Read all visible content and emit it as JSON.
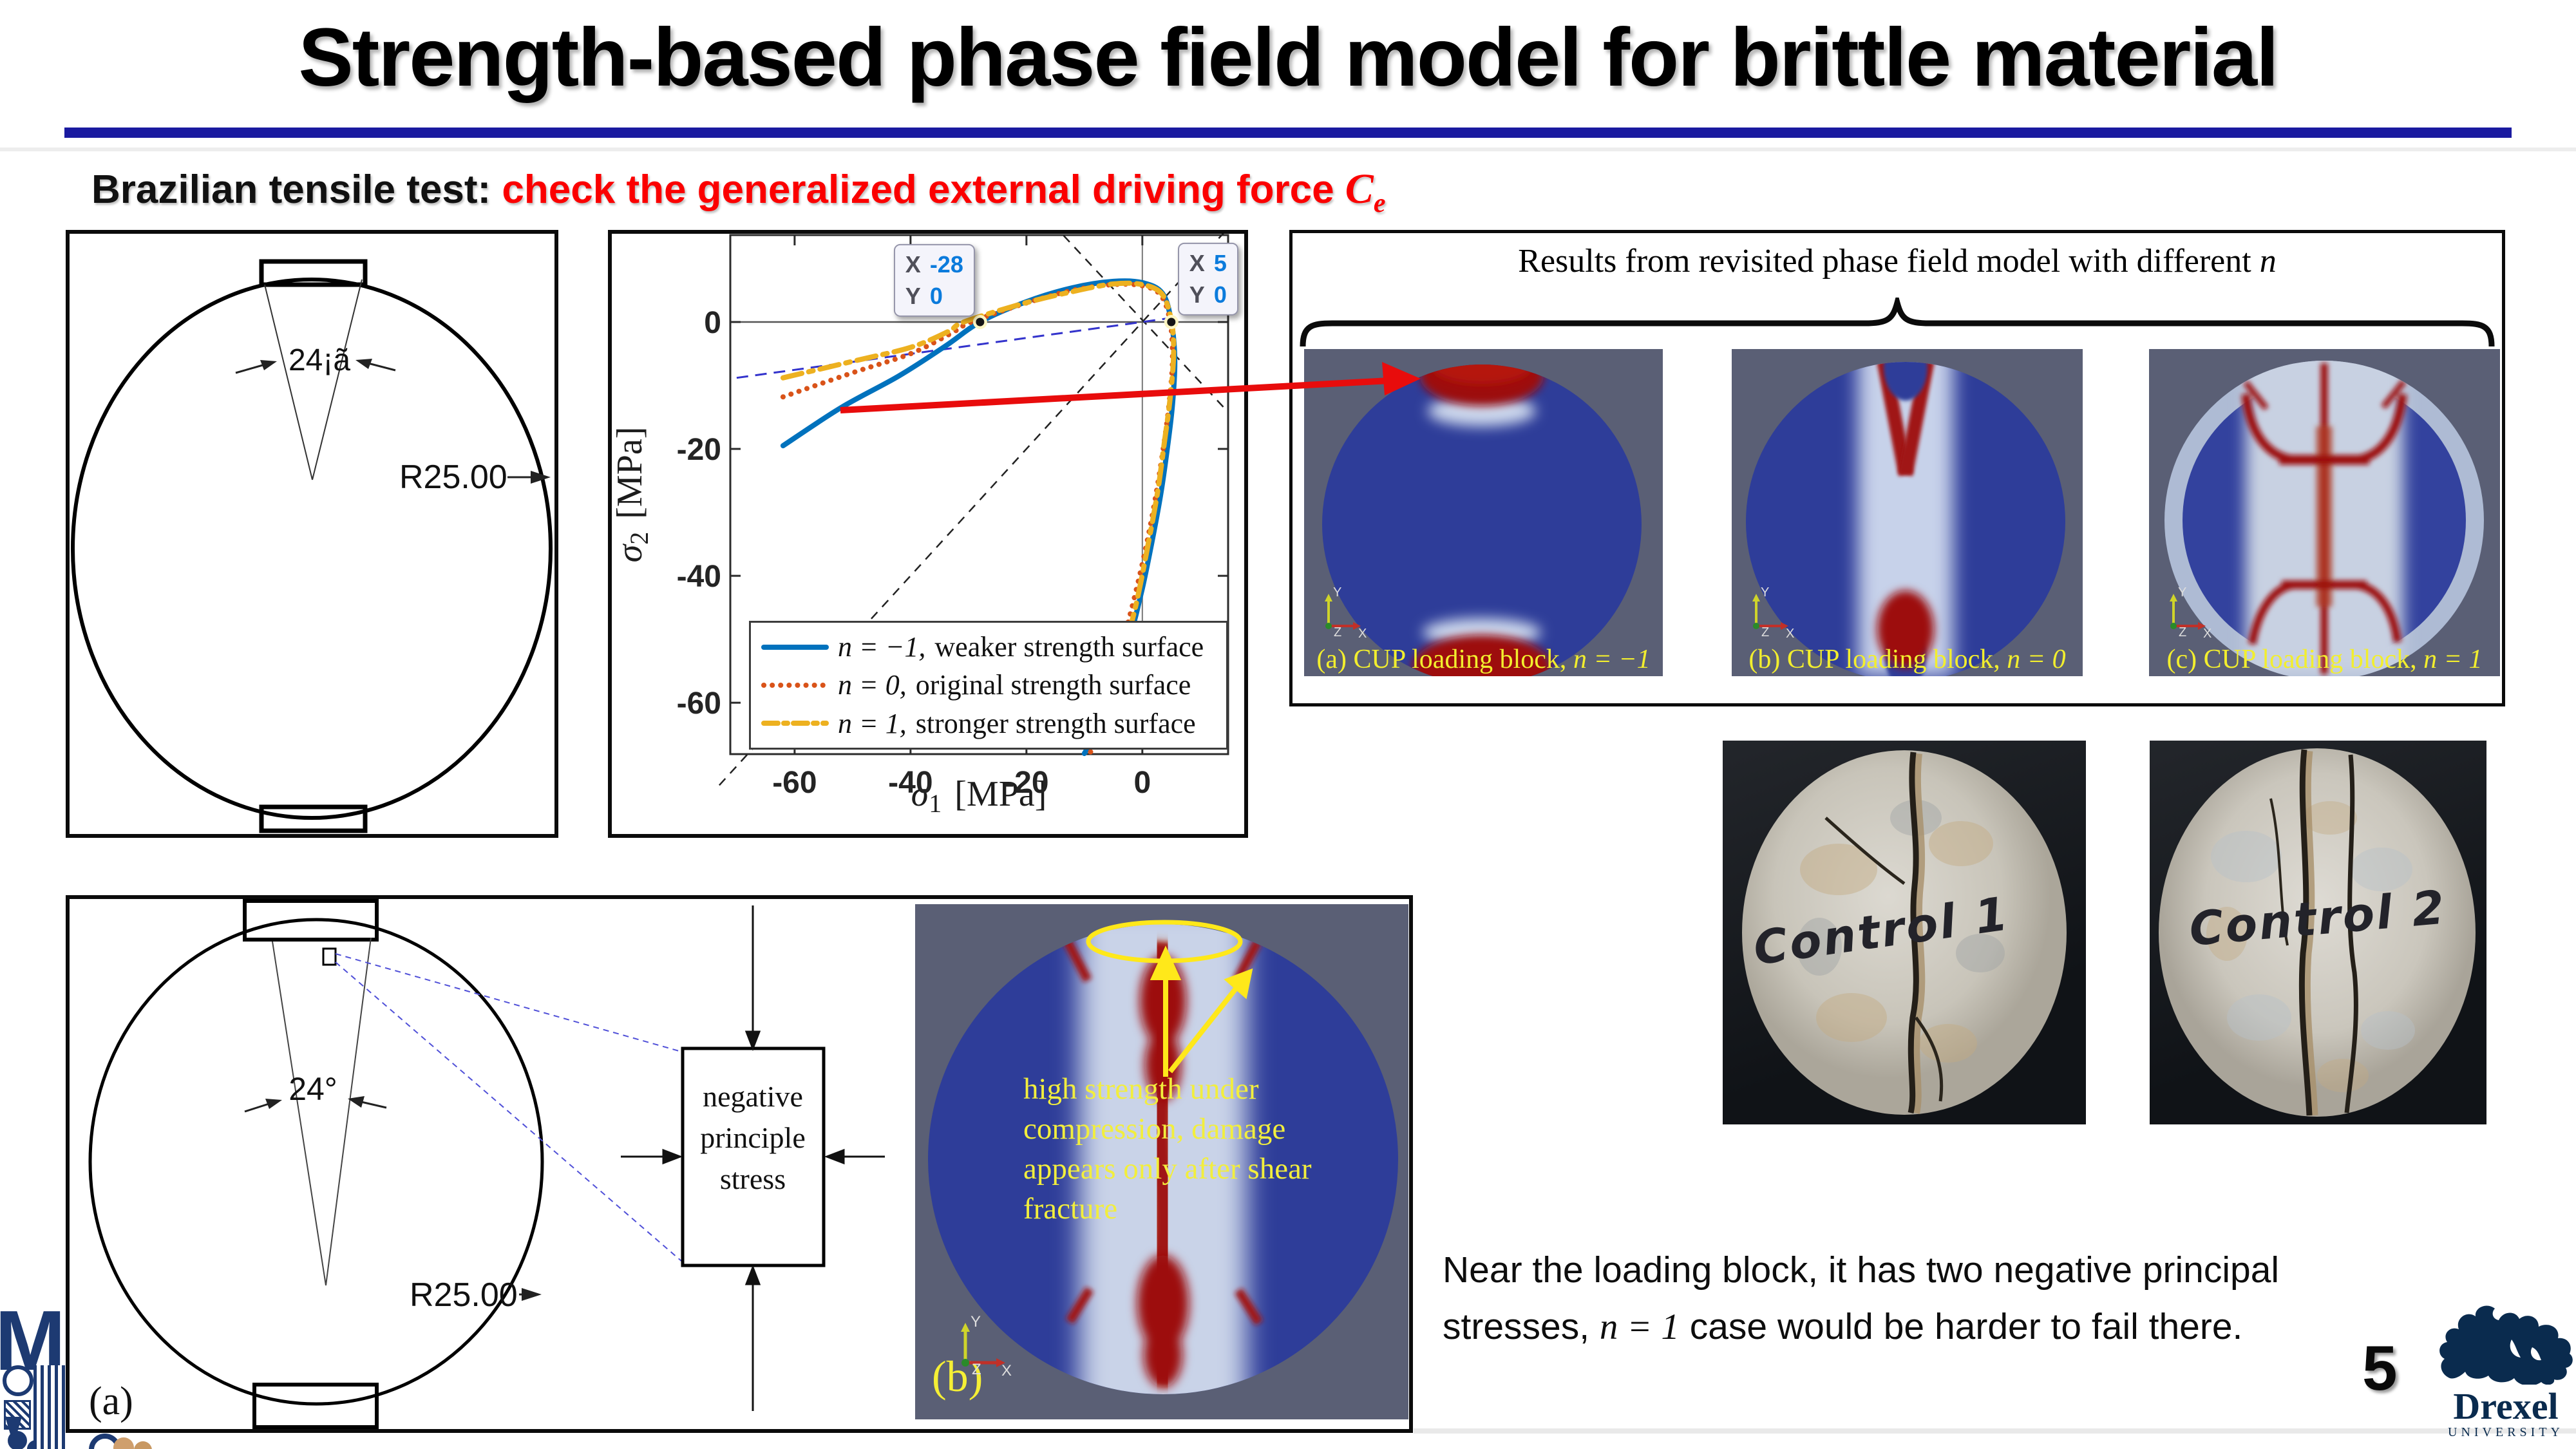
{
  "slide": {
    "title": "Strength-based phase field model for brittle material",
    "subtitle": {
      "black": "Brazilian tensile test: ",
      "red": "check the generalized external driving force ",
      "symbol_main": "C",
      "symbol_sub": "e"
    },
    "page_number": "5"
  },
  "top_left_diagram": {
    "angle_label": "24¡ã",
    "radius_label": "R25.00"
  },
  "plot": {
    "ylabel": {
      "sigma": "σ",
      "sub": "2",
      "unit": " [MPa]"
    },
    "xlabel": {
      "sigma": "σ",
      "sub": "1",
      "unit": " [MPa]"
    },
    "legend": [
      {
        "math": "n = −1,",
        "text": " weaker strength surface",
        "style": "solid",
        "color": "#0072BD"
      },
      {
        "math": "n = 0,",
        "text": " original strength surface",
        "style": "dotted",
        "color": "#D95319"
      },
      {
        "math": "n = 1,",
        "text": " stronger strength surface",
        "style": "dashdot",
        "color": "#EDB120"
      }
    ]
  },
  "chart_data": {
    "type": "line",
    "title": "",
    "xlabel": "σ1 [MPa]",
    "ylabel": "σ2 [MPa]",
    "xlim": [
      -71.1,
      14.8
    ],
    "ylim": [
      -68.1,
      13.7
    ],
    "xticks": [
      -60,
      -40,
      -20,
      0
    ],
    "yticks": [
      0,
      -20,
      -40,
      -60
    ],
    "grid": false,
    "legend_position": "lower-left-inside",
    "series": [
      {
        "name": "n = −1, weaker strength surface",
        "style": "solid",
        "color": "#0072BD",
        "points": [
          [
            -62,
            -19.5
          ],
          [
            -52,
            -13.5
          ],
          [
            -42,
            -8.5
          ],
          [
            -34,
            -3.8
          ],
          [
            -28,
            0
          ],
          [
            -20,
            3.2
          ],
          [
            -12,
            5.4
          ],
          [
            -5,
            6.4
          ],
          [
            0,
            6.2
          ],
          [
            3.5,
            4.5
          ],
          [
            5,
            0
          ],
          [
            5.6,
            -6
          ],
          [
            5.2,
            -13
          ],
          [
            4.3,
            -20
          ],
          [
            3.2,
            -27
          ],
          [
            1.8,
            -34
          ],
          [
            0,
            -42
          ],
          [
            -2.2,
            -50
          ],
          [
            -4.8,
            -58
          ],
          [
            -7.5,
            -64
          ],
          [
            -10,
            -68
          ]
        ]
      },
      {
        "name": "n = 0, original strength surface",
        "style": "dotted",
        "color": "#D95319",
        "points": [
          [
            -62,
            -11.8
          ],
          [
            -50,
            -8
          ],
          [
            -40,
            -5
          ],
          [
            -33,
            -1.8
          ],
          [
            -29.5,
            0
          ],
          [
            -20,
            3
          ],
          [
            -12,
            5
          ],
          [
            -5,
            5.9
          ],
          [
            0,
            5.7
          ],
          [
            3.2,
            4.2
          ],
          [
            4.8,
            0
          ],
          [
            5.2,
            -6
          ],
          [
            4.6,
            -13
          ],
          [
            3.6,
            -20
          ],
          [
            2.2,
            -28
          ],
          [
            0.5,
            -36
          ],
          [
            -1.8,
            -45
          ],
          [
            -4.5,
            -54
          ],
          [
            -7.3,
            -62
          ],
          [
            -9,
            -68
          ]
        ]
      },
      {
        "name": "n = 1, stronger strength surface",
        "style": "dashdot",
        "color": "#EDB120",
        "points": [
          [
            -62,
            -8.8
          ],
          [
            -50,
            -6.2
          ],
          [
            -40,
            -4
          ],
          [
            -33.5,
            -1.5
          ],
          [
            -30.8,
            0
          ],
          [
            -21,
            2.8
          ],
          [
            -12,
            4.8
          ],
          [
            -5,
            6
          ],
          [
            0,
            5.9
          ],
          [
            3.4,
            4.4
          ],
          [
            5,
            0.2
          ],
          [
            5.4,
            -5
          ],
          [
            4.8,
            -12
          ],
          [
            3.8,
            -19
          ],
          [
            2.6,
            -27
          ],
          [
            0.8,
            -36
          ],
          [
            -1.2,
            -45
          ],
          [
            -3.8,
            -54
          ],
          [
            -6,
            -62
          ],
          [
            -7.5,
            -67
          ]
        ]
      }
    ],
    "reference_lines": [
      {
        "name": "sigma2 = sigma1",
        "from": [
          -73,
          -73
        ],
        "to": [
          15.5,
          15.5
        ],
        "color": "#222222",
        "dash": "14 11",
        "width": 2.5
      },
      {
        "name": "sigma2 = -sigma1",
        "from": [
          -15.5,
          15.5
        ],
        "to": [
          14.7,
          -14.1
        ],
        "color": "#222222",
        "dash": "14 11",
        "width": 2.5
      },
      {
        "name": "biaxial tangent",
        "from": [
          -70,
          -8.8
        ],
        "to": [
          6.3,
          0.8
        ],
        "color": "#3333cc",
        "dash": "18 11",
        "width": 3
      }
    ],
    "annotations": [
      {
        "x": -28,
        "y": 0,
        "side": "left",
        "tip": {
          "x_label": "X",
          "x_value": "-28",
          "y_label": "Y",
          "y_value": "0"
        }
      },
      {
        "x": 5,
        "y": 0,
        "side": "right",
        "tip": {
          "x_label": "X",
          "x_value": "5",
          "y_label": "Y",
          "y_value": "0"
        }
      }
    ]
  },
  "right_panel": {
    "title": {
      "main": "Results from revisited phase field model with different ",
      "math": "n"
    },
    "sims": [
      {
        "caption_prefix": "(a) CUP loading block, ",
        "caption_math": "n = −1"
      },
      {
        "caption_prefix": "(b) CUP loading block, ",
        "caption_math": "n = 0"
      },
      {
        "caption_prefix": "(c) CUP loading block, ",
        "caption_math": "n = 1"
      }
    ],
    "axis_triad": {
      "x": "X",
      "y": "Y",
      "z": "Z"
    }
  },
  "photos": [
    {
      "label": "Control 1"
    },
    {
      "label": "Control 2"
    }
  ],
  "bottom_left_panel": {
    "angle_label": "24°",
    "radius_label": "R25.00",
    "stress_box_lines": [
      "negative",
      "principle",
      "stress"
    ],
    "panel_label": "(a)"
  },
  "bottom_sim": {
    "panel_label": "(b)",
    "annotation_lines": [
      "high strength under",
      "compression, damage",
      "appears only after shear",
      "fracture"
    ],
    "axis_triad": {
      "x": "X",
      "y": "Y",
      "z": "Z"
    }
  },
  "bottom_text": {
    "before": "Near the loading block, it has two negative principal stresses, ",
    "math": "n = 1",
    "after": " case would be harder to fail there."
  },
  "logo": {
    "name": "Drexel",
    "subtitle": "UNIVERSITY"
  },
  "colors": {
    "accent_rule": "#1a1aa0",
    "subtitle_red": "#fb0000",
    "sim_background": "#5a5f75",
    "sim_blue": "#2e3d99",
    "sim_red": "#a01212",
    "annotation_yellow": "#f2ee2e",
    "drexel_navy": "#0a2b4e",
    "matlab_blue": "#0072BD",
    "matlab_orange": "#D95319",
    "matlab_yellow": "#EDB120",
    "datatip_value_blue": "#0b7bdc"
  }
}
